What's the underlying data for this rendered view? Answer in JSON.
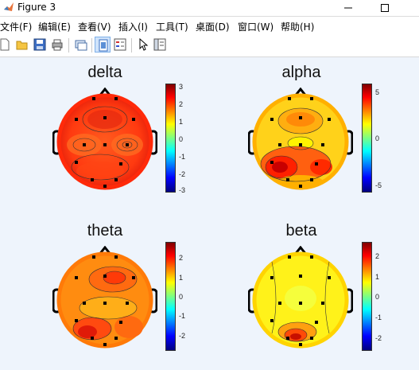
{
  "window": {
    "title": "Figure 3"
  },
  "menu": {
    "items": [
      "文件(F)",
      "编辑(E)",
      "查看(V)",
      "插入(I)",
      "工具(T)",
      "桌面(D)",
      "窗口(W)",
      "帮助(H)"
    ]
  },
  "toolbar": {
    "buttons": [
      "new-file-icon",
      "open-folder-icon",
      "save-icon",
      "print-icon",
      "link-icon",
      "dock-icon",
      "insert-legend-icon",
      "cursor-icon",
      "property-editor-icon"
    ]
  },
  "plots": [
    {
      "title": "delta",
      "ticks": [
        "3",
        "2",
        "1",
        "0",
        "-1",
        "-2",
        "-3"
      ]
    },
    {
      "title": "alpha",
      "ticks": [
        "5",
        "0",
        "-5"
      ]
    },
    {
      "title": "theta",
      "ticks": [
        "2",
        "1",
        "0",
        "-1",
        "-2"
      ]
    },
    {
      "title": "beta",
      "ticks": [
        "2",
        "1",
        "0",
        "-1",
        "-2"
      ]
    }
  ],
  "colors": {
    "jet_top": "#7f0000",
    "jet_bottom": "#00007f",
    "background": "#eef4fc"
  }
}
